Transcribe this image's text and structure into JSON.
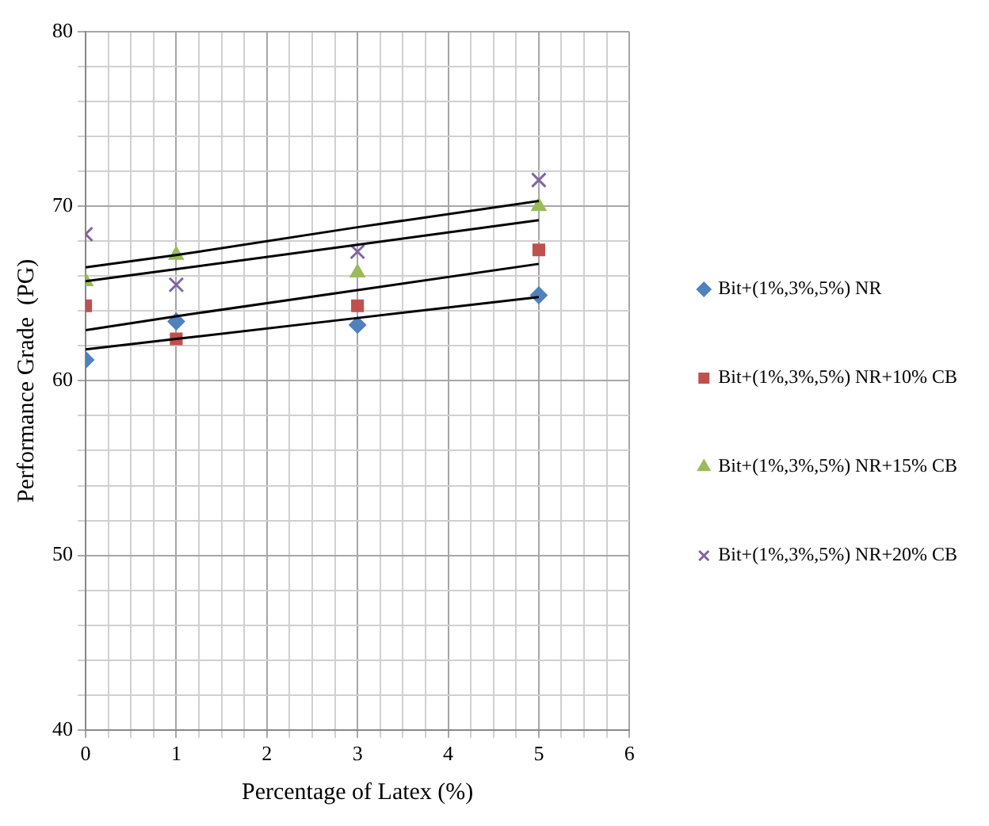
{
  "chart_data": {
    "type": "scatter",
    "xlabel": "Percentage of Latex (%)",
    "ylabel": "Performance Grade  (PG)",
    "x": [
      0,
      1,
      3,
      5
    ],
    "series": [
      {
        "name": "Bit+(1%,3%,5%) NR",
        "color": "#4f81bd",
        "marker": "diamond",
        "values": [
          61.2,
          63.4,
          63.2,
          64.9
        ]
      },
      {
        "name": "Bit+(1%,3%,5%) NR+10% CB",
        "color": "#c0504d",
        "marker": "square",
        "values": [
          64.3,
          62.4,
          64.3,
          67.5
        ]
      },
      {
        "name": "Bit+(1%,3%,5%) NR+15% CB",
        "color": "#9bbb59",
        "marker": "triangle",
        "values": [
          65.7,
          67.2,
          66.2,
          70.0
        ]
      },
      {
        "name": "Bit+(1%,3%,5%) NR+20% CB",
        "color": "#8064a2",
        "marker": "cross",
        "values": [
          68.4,
          65.5,
          67.4,
          71.5
        ]
      },
      {
        "type": "line",
        "color": "#000000",
        "marker": "none",
        "values": [
          61.8,
          62.4,
          63.6,
          64.8
        ]
      },
      {
        "type": "line",
        "color": "#000000",
        "marker": "none",
        "values": [
          62.9,
          63.7,
          65.2,
          66.7
        ]
      },
      {
        "type": "line",
        "color": "#000000",
        "marker": "none",
        "values": [
          65.7,
          66.4,
          67.8,
          69.2
        ]
      },
      {
        "type": "line",
        "color": "#000000",
        "marker": "none",
        "values": [
          66.5,
          67.2,
          68.8,
          70.3
        ]
      }
    ],
    "xlim": [
      0,
      6
    ],
    "xticks": [
      0,
      {
        "value": 0.25,
        "label": null
      },
      {
        "value": 0.5,
        "label": null
      },
      {
        "value": 0.75,
        "label": null
      },
      1,
      {
        "value": 1.25,
        "label": null
      },
      {
        "value": 1.5,
        "label": null
      },
      {
        "value": 1.75,
        "label": null
      },
      2,
      {
        "value": 2.25,
        "label": null
      },
      {
        "value": 2.5,
        "label": null
      },
      {
        "value": 2.75,
        "label": null
      },
      3,
      {
        "value": 3.25,
        "label": null
      },
      {
        "value": 3.5,
        "label": null
      },
      {
        "value": 3.75,
        "label": null
      },
      4,
      {
        "value": 4.25,
        "label": null
      },
      {
        "value": 4.5,
        "label": null
      },
      {
        "value": 4.75,
        "label": null
      },
      5,
      {
        "value": 5.25,
        "label": null
      },
      {
        "value": 5.5,
        "label": null
      },
      {
        "value": 5.75,
        "label": null
      },
      6
    ],
    "ylim": [
      40,
      80
    ],
    "yticks": [
      40,
      {
        "value": 42,
        "label": null
      },
      {
        "value": 44,
        "label": null
      },
      {
        "value": 46,
        "label": null
      },
      {
        "value": 48,
        "label": null
      },
      50,
      {
        "value": 52,
        "label": null
      },
      {
        "value": 54,
        "label": null
      },
      {
        "value": 56,
        "label": null
      },
      {
        "value": 58,
        "label": null
      },
      60,
      {
        "value": 62,
        "label": null
      },
      {
        "value": 64,
        "label": null
      },
      {
        "value": 66,
        "label": null
      },
      {
        "value": 68,
        "label": null
      },
      70,
      {
        "value": 72,
        "label": null
      },
      {
        "value": 74,
        "label": null
      },
      {
        "value": 76,
        "label": null
      },
      {
        "value": 78,
        "label": null
      },
      80
    ],
    "grid": true,
    "legend": "right",
    "line_style": "solid"
  }
}
